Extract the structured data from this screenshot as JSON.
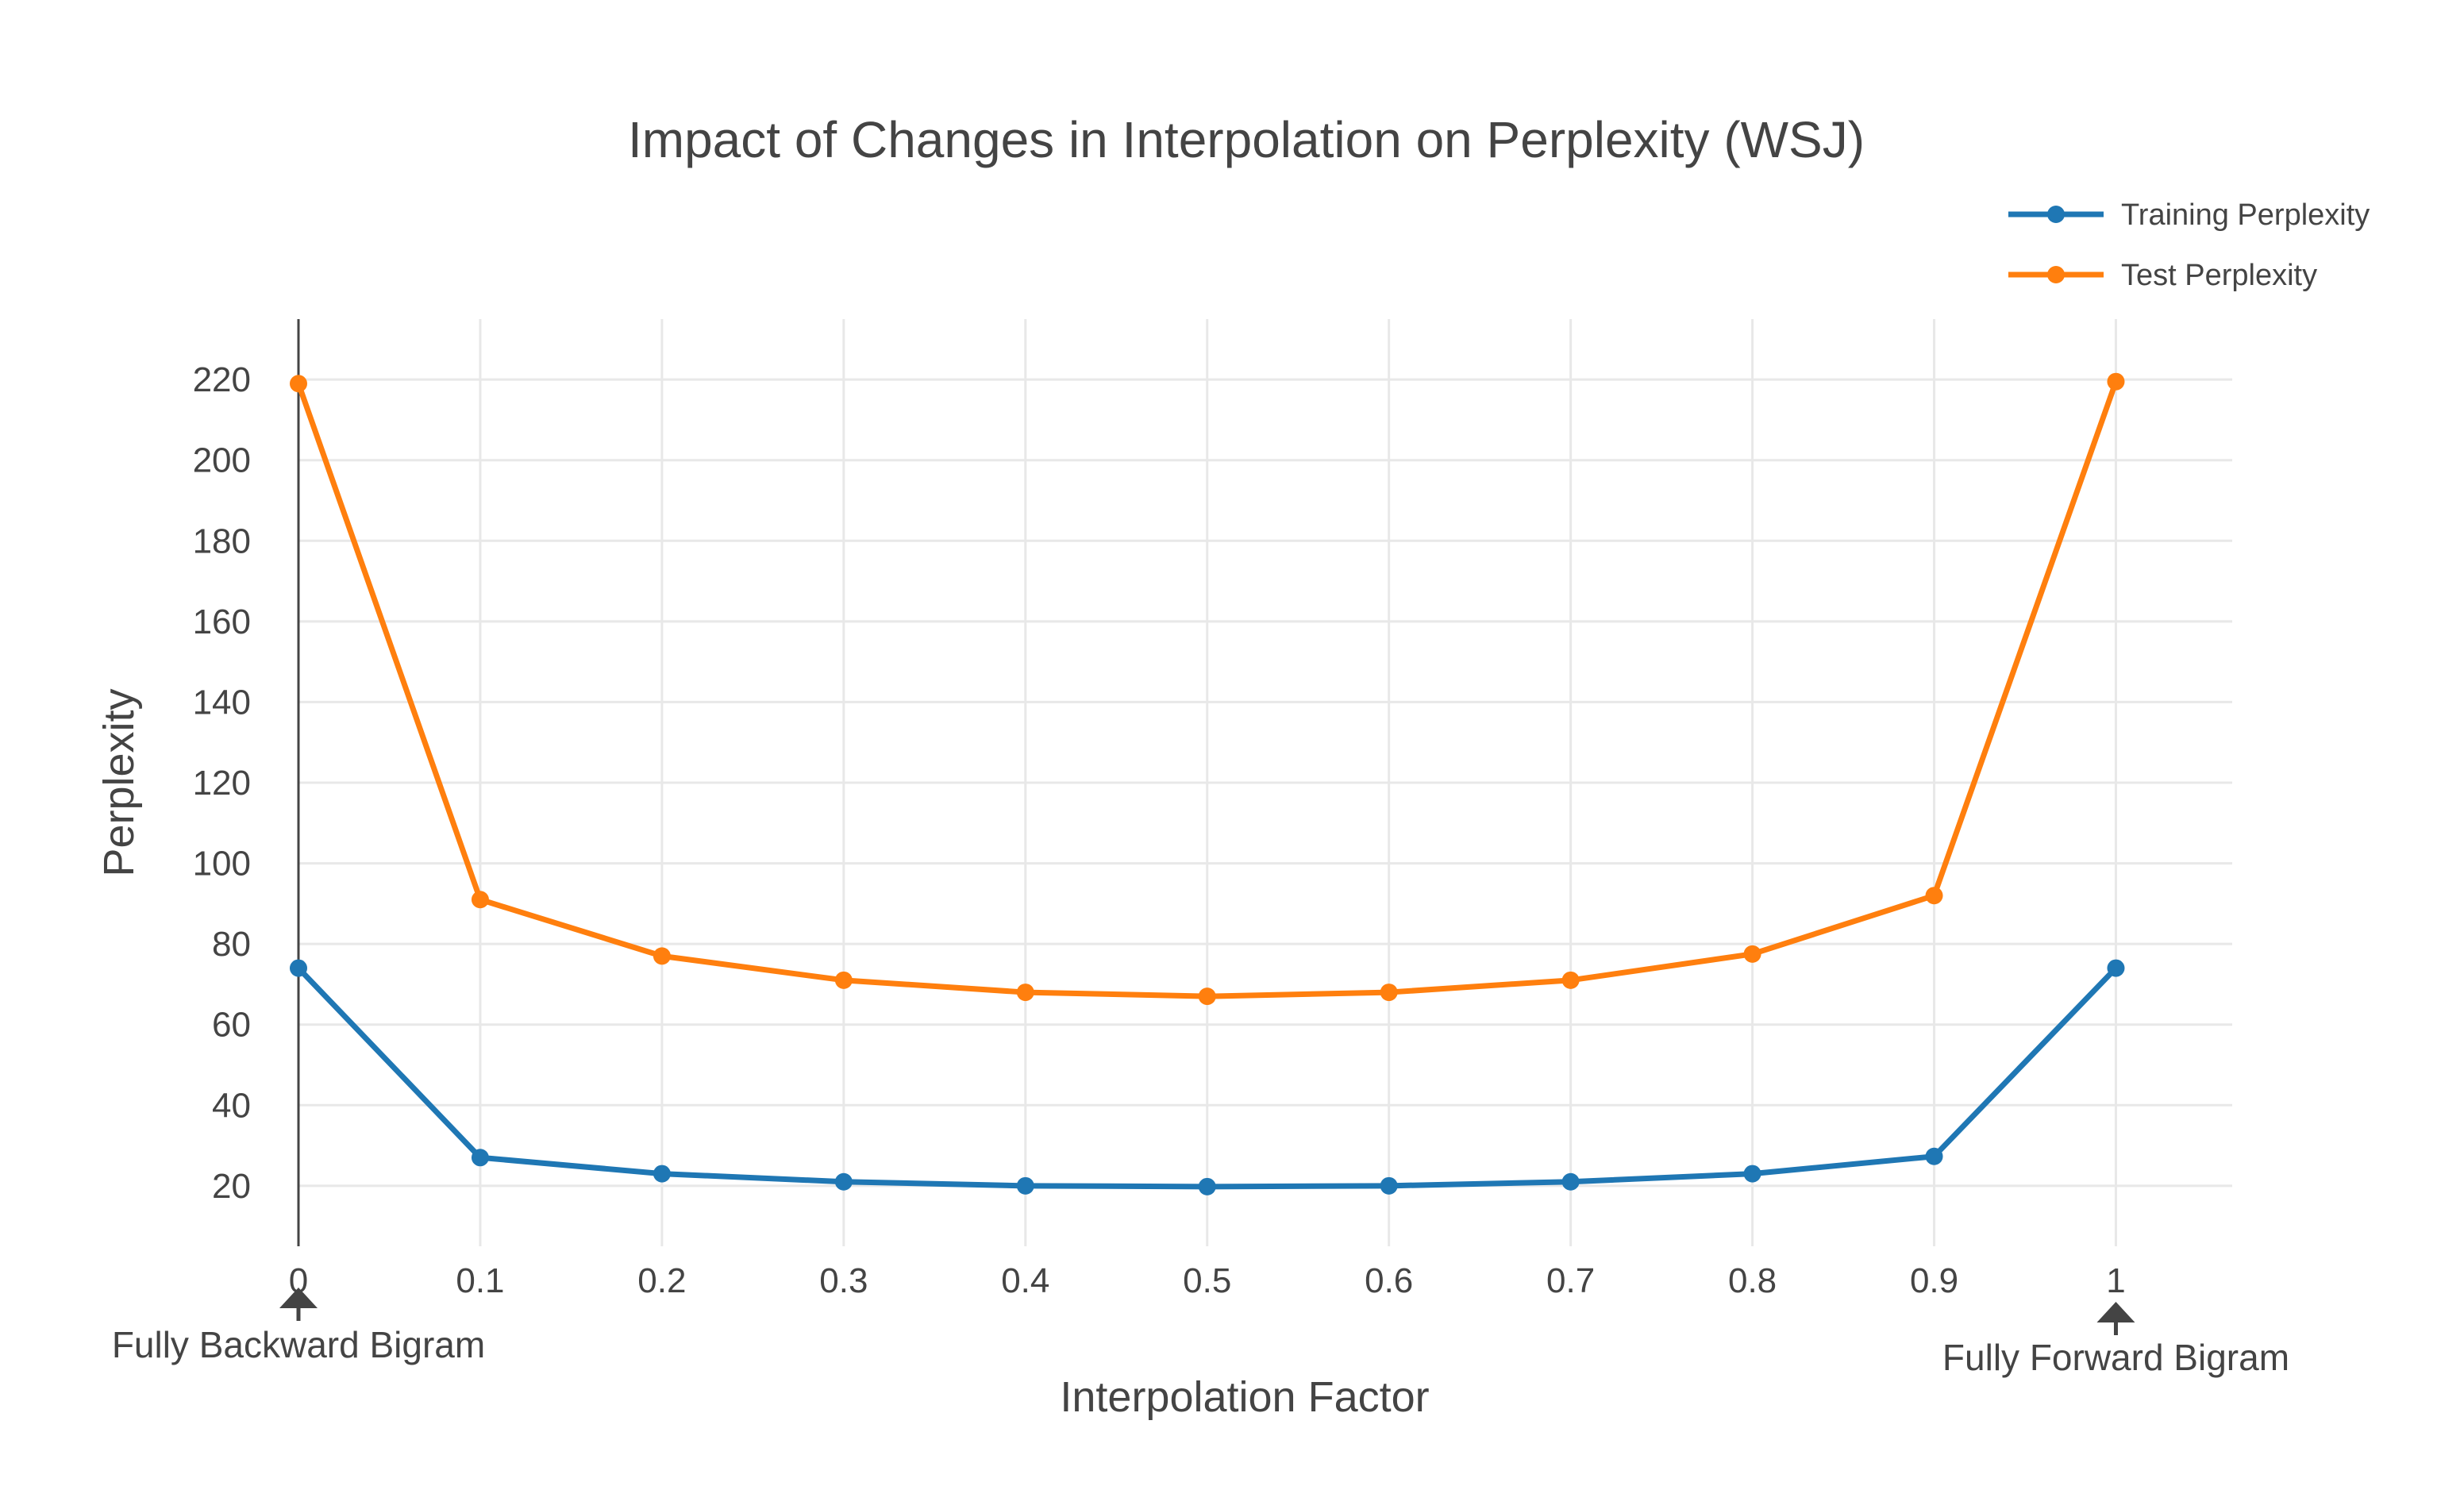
{
  "chart_data": {
    "type": "line",
    "title": "Impact of Changes in Interpolation on Perplexity (WSJ)",
    "xlabel": "Interpolation Factor",
    "ylabel": "Perplexity",
    "x": [
      0,
      0.1,
      0.2,
      0.3,
      0.4,
      0.5,
      0.6,
      0.7,
      0.8,
      0.9,
      1
    ],
    "x_tick_labels": [
      "0",
      "0.1",
      "0.2",
      "0.3",
      "0.4",
      "0.5",
      "0.6",
      "0.7",
      "0.8",
      "0.9",
      "1"
    ],
    "y_ticks": [
      20,
      40,
      60,
      80,
      100,
      120,
      140,
      160,
      180,
      200,
      220
    ],
    "xlim": [
      0,
      1.064
    ],
    "ylim": [
      5,
      235
    ],
    "grid": true,
    "legend_position": "top-right",
    "series": [
      {
        "name": "Training Perplexity",
        "color": "#1f77b4",
        "values": [
          74,
          27,
          23,
          21,
          20,
          19.8,
          20,
          21,
          23,
          27.3,
          74
        ]
      },
      {
        "name": "Test Perplexity",
        "color": "#ff7f0e",
        "values": [
          219,
          91,
          77,
          71,
          68,
          67,
          68,
          71,
          77.5,
          92,
          219.5
        ]
      }
    ],
    "annotations": [
      {
        "text": "Fully Backward Bigram",
        "x": 0,
        "arrow": "up"
      },
      {
        "text": "Fully Forward Bigram",
        "x": 1,
        "arrow": "up"
      }
    ]
  }
}
